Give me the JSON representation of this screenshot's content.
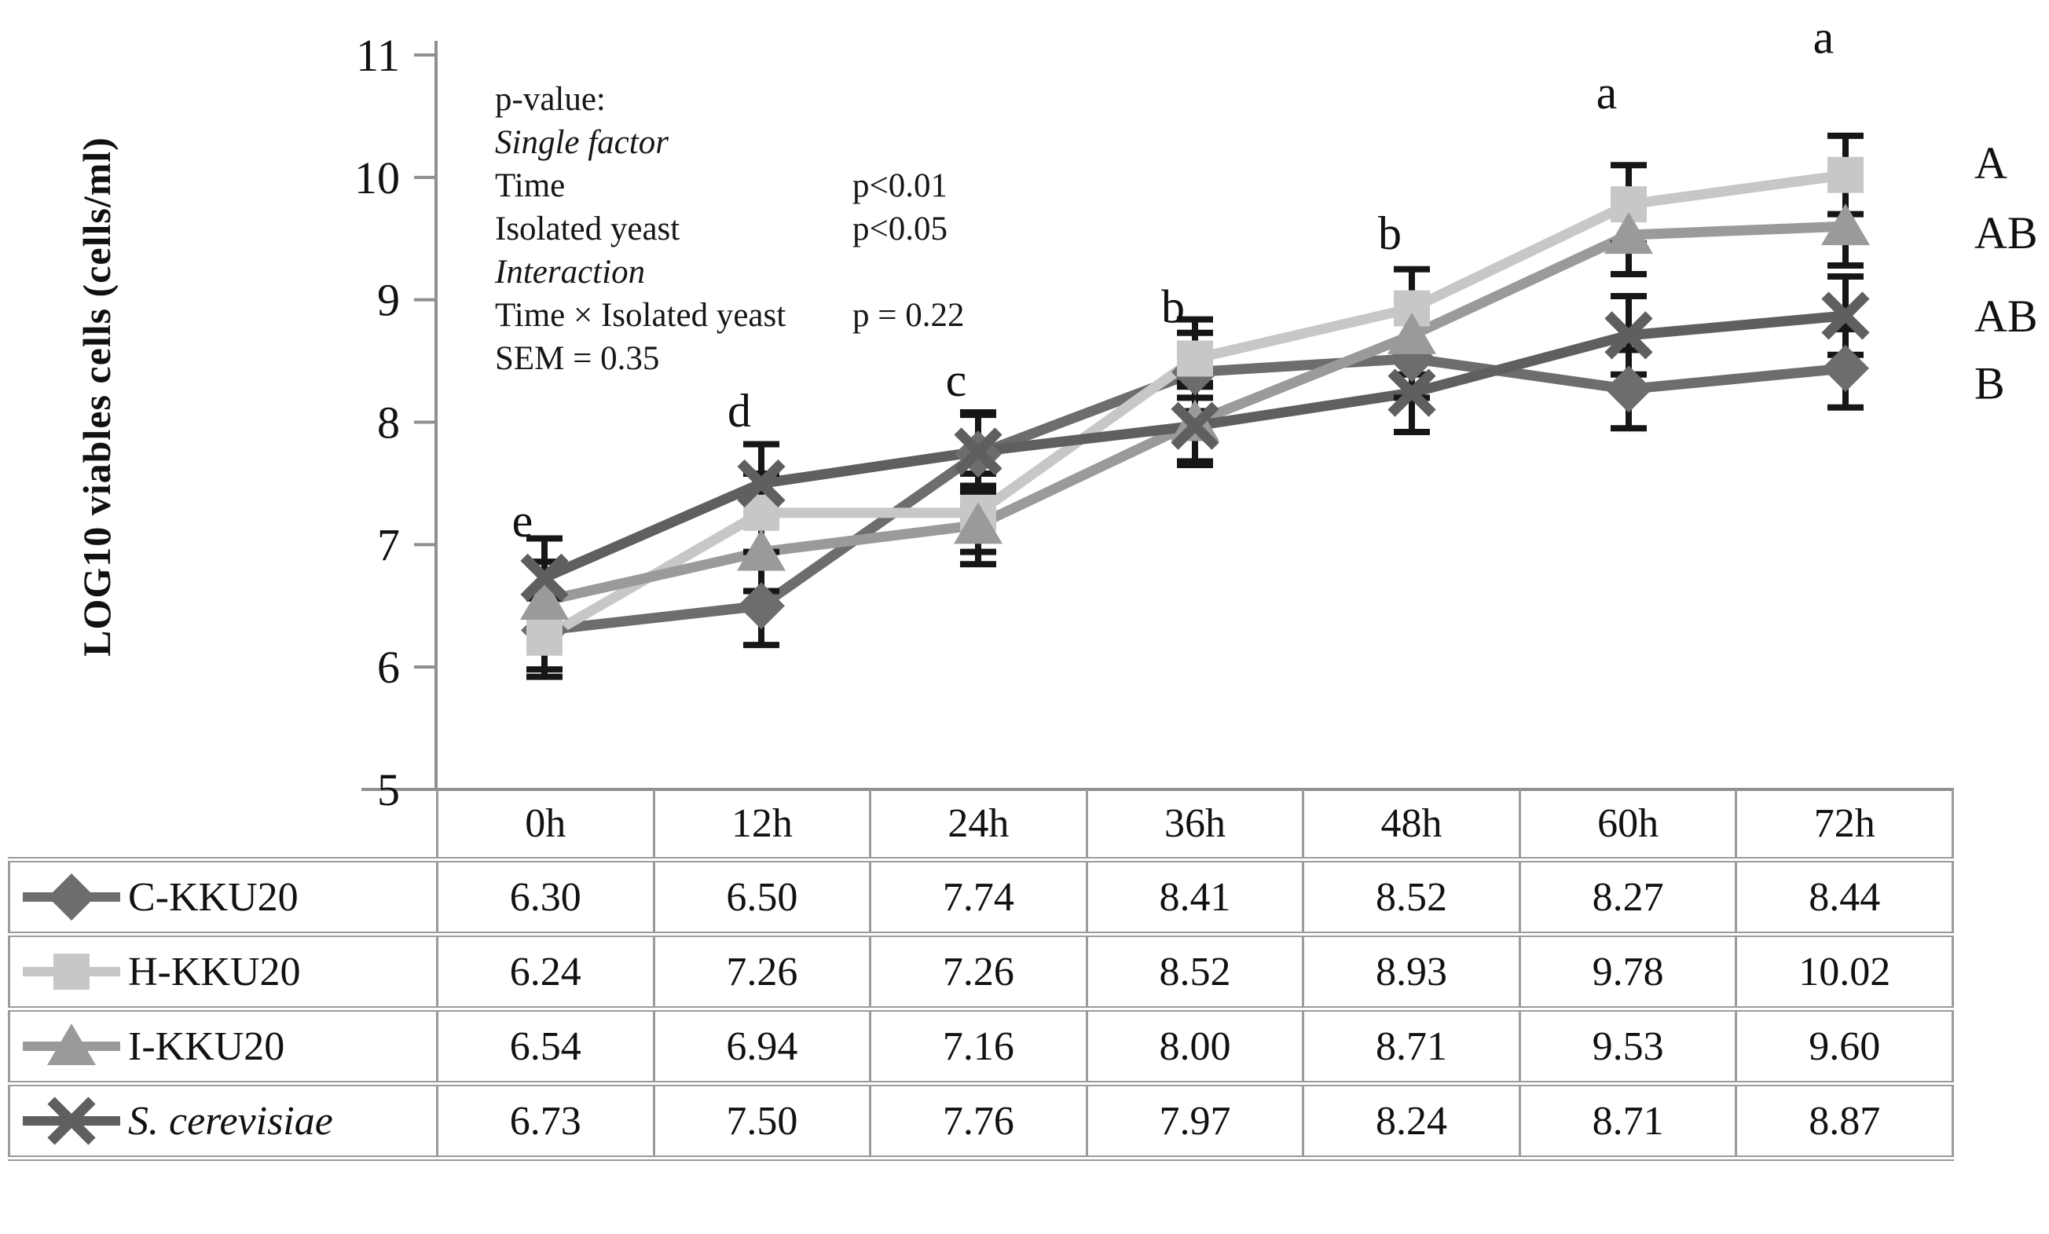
{
  "chart_data": {
    "type": "line",
    "title": "",
    "ylabel": "LOG10 viables cells (cells/ml)",
    "xlabel": "",
    "ylim": [
      5,
      11
    ],
    "yticks": [
      5,
      6,
      7,
      8,
      9,
      10,
      11
    ],
    "grid": false,
    "legend_position": "table-left-column",
    "categories": [
      "0h",
      "12h",
      "24h",
      "36h",
      "48h",
      "60h",
      "72h"
    ],
    "series": [
      {
        "name": "C-KKU20",
        "marker": "diamond",
        "color": "#6d6d6d",
        "italic": false,
        "end_label": "B",
        "values": [
          6.3,
          6.5,
          7.74,
          8.41,
          8.52,
          8.27,
          8.44
        ]
      },
      {
        "name": "H-KKU20",
        "marker": "square",
        "color": "#c7c7c7",
        "italic": false,
        "end_label": "A",
        "values": [
          6.24,
          7.26,
          7.26,
          8.52,
          8.93,
          9.78,
          10.02
        ]
      },
      {
        "name": "I-KKU20",
        "marker": "triangle",
        "color": "#9a9a9a",
        "italic": false,
        "end_label": "AB",
        "values": [
          6.54,
          6.94,
          7.16,
          8.0,
          8.71,
          9.53,
          9.6
        ]
      },
      {
        "name": "S. cerevisiae",
        "marker": "x",
        "color": "#5f5f5f",
        "italic": true,
        "end_label": "AB",
        "values": [
          6.73,
          7.5,
          7.76,
          7.97,
          8.24,
          8.71,
          8.87
        ]
      }
    ],
    "error_bar_half": 0.32,
    "point_labels": [
      {
        "category": "0h",
        "text": "e",
        "y": 7.2
      },
      {
        "category": "12h",
        "text": "d",
        "y": 8.1
      },
      {
        "category": "24h",
        "text": "c",
        "y": 8.35
      },
      {
        "category": "36h",
        "text": "b",
        "y": 8.95
      },
      {
        "category": "48h",
        "text": "b",
        "y": 9.55
      },
      {
        "category": "60h",
        "text": "a",
        "y": 10.7
      },
      {
        "category": "72h",
        "text": "a",
        "y": 11.15
      }
    ],
    "end_labels": [
      {
        "text": "A",
        "y": 10.12
      },
      {
        "text": "AB",
        "y": 9.55
      },
      {
        "text": "AB",
        "y": 8.87
      },
      {
        "text": "B",
        "y": 8.32
      }
    ],
    "stats_annotation": [
      {
        "label": "p-value:",
        "value": "",
        "italic": false
      },
      {
        "label": "Single factor",
        "value": "",
        "italic": true
      },
      {
        "label": "Time",
        "value": "p<0.01",
        "italic": false
      },
      {
        "label": "Isolated yeast",
        "value": "p<0.05",
        "italic": false
      },
      {
        "label": "Interaction",
        "value": "",
        "italic": true
      },
      {
        "label": "Time × Isolated yeast",
        "value": "p = 0.22",
        "italic": false
      },
      {
        "label": "SEM = 0.35",
        "value": "",
        "italic": false
      }
    ],
    "colors": {
      "axis": "#8f8f8f",
      "error_bar": "#161616",
      "text": "#111111",
      "table_border": "#9b9b9b",
      "background": "#ffffff"
    }
  },
  "table": {
    "corner_label": "",
    "columns": [
      "0h",
      "12h",
      "24h",
      "36h",
      "48h",
      "60h",
      "72h"
    ]
  }
}
